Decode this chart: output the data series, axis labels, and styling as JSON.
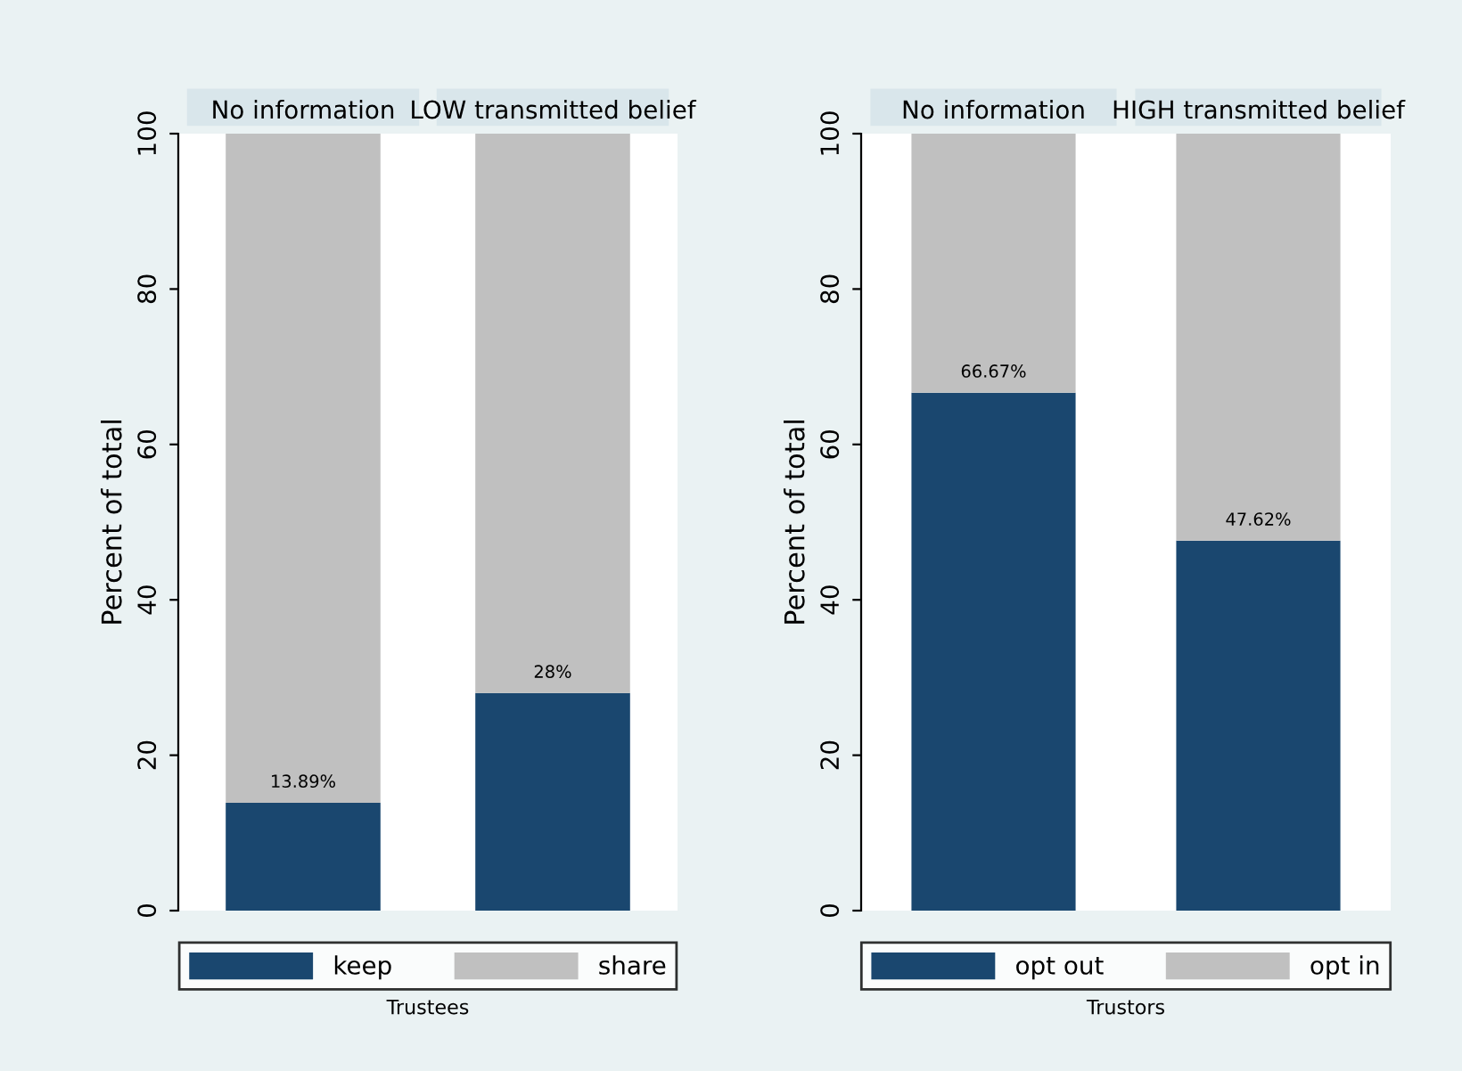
{
  "chart_data": [
    {
      "type": "bar",
      "stacked": true,
      "ylabel": "Percent of total",
      "xlabel": "Trustees",
      "categories": [
        "No information",
        "LOW transmitted belief"
      ],
      "ylim": [
        0,
        100
      ],
      "yticks": [
        0,
        20,
        40,
        60,
        80,
        100
      ],
      "grid": false,
      "legend": "bottom",
      "series": [
        {
          "name": "keep",
          "color": "#1a476f",
          "values": [
            13.89,
            28
          ],
          "value_labels": [
            "13.89%",
            "28%"
          ]
        },
        {
          "name": "share",
          "color": "#c0c0c0",
          "values": [
            86.11,
            72
          ]
        }
      ]
    },
    {
      "type": "bar",
      "stacked": true,
      "ylabel": "Percent of total",
      "xlabel": "Trustors",
      "categories": [
        "No information",
        "HIGH transmitted belief"
      ],
      "ylim": [
        0,
        100
      ],
      "yticks": [
        0,
        20,
        40,
        60,
        80,
        100
      ],
      "grid": false,
      "legend": "bottom",
      "series": [
        {
          "name": "opt out",
          "color": "#1a476f",
          "values": [
            66.67,
            47.62
          ],
          "value_labels": [
            "66.67%",
            "47.62%"
          ]
        },
        {
          "name": "opt in",
          "color": "#c0c0c0",
          "values": [
            33.33,
            52.38
          ]
        }
      ]
    }
  ]
}
